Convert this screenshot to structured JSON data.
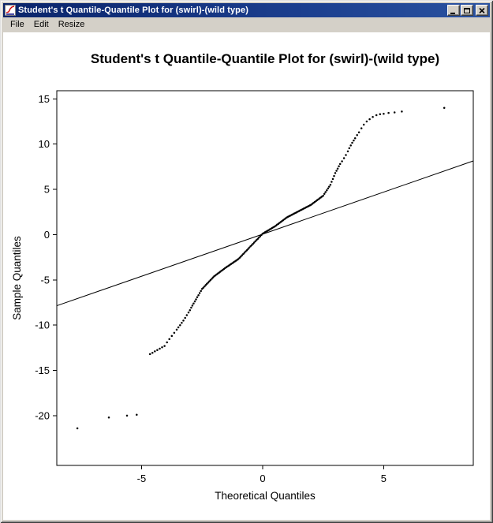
{
  "window": {
    "title": "Student's t Quantile-Quantile Plot for (swirl)-(wild type)"
  },
  "menu": {
    "items": [
      "File",
      "Edit",
      "Resize"
    ]
  },
  "colors": {
    "titlebar_start": "#0a246a",
    "titlebar_end": "#2a52a0",
    "chrome": "#d4d0c8",
    "plot_background": "#ffffff",
    "point_color": "#000000",
    "line_color": "#000000"
  },
  "chart_data": {
    "type": "scatter",
    "title": "Student's t Quantile-Quantile Plot for (swirl)-(wild type)",
    "xlabel": "Theoretical Quantiles",
    "ylabel": "Sample Quantiles",
    "xlim": [
      -8.5,
      8.7
    ],
    "ylim": [
      -25.5,
      15.9
    ],
    "xticks": [
      -5,
      0,
      5
    ],
    "yticks": [
      -20,
      -15,
      -10,
      -5,
      0,
      5,
      10,
      15
    ],
    "grid": false,
    "reference_line": {
      "slope": 0.93,
      "intercept": 0.05
    },
    "points": [
      [
        -7.65,
        -21.4
      ],
      [
        -6.35,
        -20.2
      ],
      [
        -5.6,
        -20.0
      ],
      [
        -5.2,
        -19.9
      ],
      [
        -4.65,
        -13.2
      ],
      [
        -4.55,
        -13.05
      ],
      [
        -4.45,
        -12.9
      ],
      [
        -4.35,
        -12.75
      ],
      [
        -4.25,
        -12.6
      ],
      [
        -4.15,
        -12.45
      ],
      [
        -4.05,
        -12.3
      ],
      [
        -3.95,
        -11.9
      ],
      [
        -3.85,
        -11.55
      ],
      [
        -3.75,
        -11.2
      ],
      [
        -3.65,
        -10.85
      ],
      [
        -3.55,
        -10.5
      ],
      [
        -3.48,
        -10.25
      ],
      [
        -3.41,
        -10.0
      ],
      [
        -3.34,
        -9.75
      ],
      [
        -3.27,
        -9.5
      ],
      [
        -3.2,
        -9.2
      ],
      [
        -3.13,
        -8.9
      ],
      [
        -3.06,
        -8.6
      ],
      [
        -3.0,
        -8.35
      ],
      [
        -2.95,
        -8.07
      ],
      [
        -2.9,
        -7.84
      ],
      [
        -2.85,
        -7.61
      ],
      [
        -2.8,
        -7.38
      ],
      [
        -2.75,
        -7.15
      ],
      [
        -2.7,
        -6.92
      ],
      [
        -2.65,
        -6.69
      ],
      [
        -2.6,
        -6.46
      ],
      [
        -2.55,
        -6.23
      ],
      [
        -2.5,
        -6.0
      ],
      [
        -2.45,
        -5.86
      ],
      [
        -2.4,
        -5.72
      ],
      [
        -2.35,
        -5.58
      ],
      [
        -2.3,
        -5.44
      ],
      [
        -2.25,
        -5.3
      ],
      [
        -2.2,
        -5.16
      ],
      [
        -2.15,
        -5.02
      ],
      [
        -2.1,
        -4.88
      ],
      [
        -2.05,
        -4.74
      ],
      [
        -2.0,
        -4.6
      ],
      [
        -1.95,
        -4.5
      ],
      [
        -1.9,
        -4.4
      ],
      [
        -1.85,
        -4.3
      ],
      [
        -1.8,
        -4.2
      ],
      [
        -1.75,
        -4.1
      ],
      [
        -1.7,
        -4.0
      ],
      [
        -1.65,
        -3.9
      ],
      [
        -1.6,
        -3.8
      ],
      [
        -1.55,
        -3.7
      ],
      [
        -1.5,
        -3.6
      ],
      [
        -1.45,
        -3.51
      ],
      [
        -1.4,
        -3.42
      ],
      [
        -1.35,
        -3.33
      ],
      [
        -1.3,
        -3.24
      ],
      [
        -1.25,
        -3.15
      ],
      [
        -1.2,
        -3.06
      ],
      [
        -1.15,
        -2.97
      ],
      [
        -1.1,
        -2.88
      ],
      [
        -1.05,
        -2.79
      ],
      [
        -1.0,
        -2.7
      ],
      [
        -0.95,
        -2.56
      ],
      [
        -0.9,
        -2.42
      ],
      [
        -0.85,
        -2.28
      ],
      [
        -0.8,
        -2.14
      ],
      [
        -0.75,
        -2.0
      ],
      [
        -0.7,
        -1.86
      ],
      [
        -0.65,
        -1.72
      ],
      [
        -0.6,
        -1.58
      ],
      [
        -0.55,
        -1.44
      ],
      [
        -0.5,
        -1.3
      ],
      [
        -0.45,
        -1.16
      ],
      [
        -0.4,
        -1.02
      ],
      [
        -0.35,
        -0.88
      ],
      [
        -0.3,
        -0.74
      ],
      [
        -0.25,
        -0.6
      ],
      [
        -0.2,
        -0.46
      ],
      [
        -0.15,
        -0.32
      ],
      [
        -0.1,
        -0.18
      ],
      [
        -0.05,
        -0.04
      ],
      [
        0.0,
        0.1
      ],
      [
        0.05,
        0.18
      ],
      [
        0.1,
        0.26
      ],
      [
        0.15,
        0.34
      ],
      [
        0.2,
        0.42
      ],
      [
        0.25,
        0.5
      ],
      [
        0.3,
        0.58
      ],
      [
        0.35,
        0.66
      ],
      [
        0.4,
        0.74
      ],
      [
        0.45,
        0.82
      ],
      [
        0.5,
        0.9
      ],
      [
        0.55,
        1.0
      ],
      [
        0.6,
        1.1
      ],
      [
        0.65,
        1.2
      ],
      [
        0.7,
        1.3
      ],
      [
        0.75,
        1.4
      ],
      [
        0.8,
        1.5
      ],
      [
        0.85,
        1.6
      ],
      [
        0.9,
        1.7
      ],
      [
        0.95,
        1.8
      ],
      [
        1.0,
        1.9
      ],
      [
        1.05,
        1.97
      ],
      [
        1.1,
        2.04
      ],
      [
        1.15,
        2.11
      ],
      [
        1.2,
        2.18
      ],
      [
        1.25,
        2.25
      ],
      [
        1.3,
        2.32
      ],
      [
        1.35,
        2.39
      ],
      [
        1.4,
        2.46
      ],
      [
        1.45,
        2.53
      ],
      [
        1.5,
        2.6
      ],
      [
        1.55,
        2.67
      ],
      [
        1.6,
        2.74
      ],
      [
        1.65,
        2.81
      ],
      [
        1.7,
        2.88
      ],
      [
        1.75,
        2.95
      ],
      [
        1.8,
        3.02
      ],
      [
        1.85,
        3.09
      ],
      [
        1.9,
        3.16
      ],
      [
        1.95,
        3.23
      ],
      [
        2.0,
        3.3
      ],
      [
        2.05,
        3.4
      ],
      [
        2.1,
        3.5
      ],
      [
        2.15,
        3.6
      ],
      [
        2.2,
        3.7
      ],
      [
        2.25,
        3.8
      ],
      [
        2.3,
        3.9
      ],
      [
        2.35,
        4.0
      ],
      [
        2.4,
        4.1
      ],
      [
        2.45,
        4.2
      ],
      [
        2.5,
        4.3
      ],
      [
        2.55,
        4.5
      ],
      [
        2.6,
        4.7
      ],
      [
        2.65,
        4.9
      ],
      [
        2.7,
        5.1
      ],
      [
        2.75,
        5.3
      ],
      [
        2.8,
        5.5
      ],
      [
        2.85,
        5.83
      ],
      [
        2.9,
        6.15
      ],
      [
        2.95,
        6.48
      ],
      [
        3.0,
        6.8
      ],
      [
        3.05,
        7.05
      ],
      [
        3.1,
        7.3
      ],
      [
        3.15,
        7.55
      ],
      [
        3.2,
        7.8
      ],
      [
        3.28,
        8.1
      ],
      [
        3.36,
        8.45
      ],
      [
        3.44,
        8.8
      ],
      [
        3.52,
        9.2
      ],
      [
        3.58,
        9.55
      ],
      [
        3.64,
        9.85
      ],
      [
        3.7,
        10.15
      ],
      [
        3.76,
        10.4
      ],
      [
        3.82,
        10.65
      ],
      [
        3.9,
        11.0
      ],
      [
        3.98,
        11.3
      ],
      [
        4.08,
        11.75
      ],
      [
        4.18,
        12.15
      ],
      [
        4.3,
        12.5
      ],
      [
        4.42,
        12.75
      ],
      [
        4.55,
        13.0
      ],
      [
        4.7,
        13.2
      ],
      [
        4.85,
        13.3
      ],
      [
        5.0,
        13.35
      ],
      [
        5.2,
        13.45
      ],
      [
        5.45,
        13.5
      ],
      [
        5.75,
        13.6
      ],
      [
        7.5,
        14.0
      ]
    ]
  }
}
